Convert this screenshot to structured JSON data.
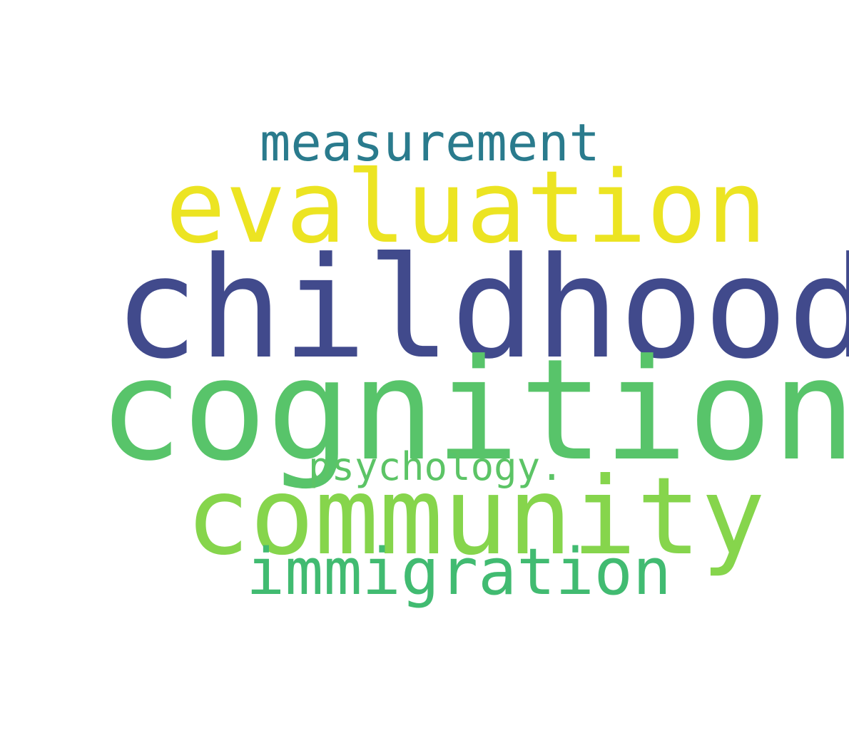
{
  "words": [
    {
      "key": "measurement",
      "text": "measurement",
      "color": "#2a7b8d"
    },
    {
      "key": "evaluation",
      "text": "evaluation",
      "color": "#ece422"
    },
    {
      "key": "childhood",
      "text": "childhood",
      "color": "#414a8c"
    },
    {
      "key": "cognition",
      "text": "cognition",
      "color": "#58c46a"
    },
    {
      "key": "psychology",
      "text": "psychology.",
      "color": "#5cc466"
    },
    {
      "key": "community",
      "text": "community",
      "color": "#86d54c"
    },
    {
      "key": "immigration",
      "text": "immigration",
      "color": "#41bb71"
    }
  ]
}
